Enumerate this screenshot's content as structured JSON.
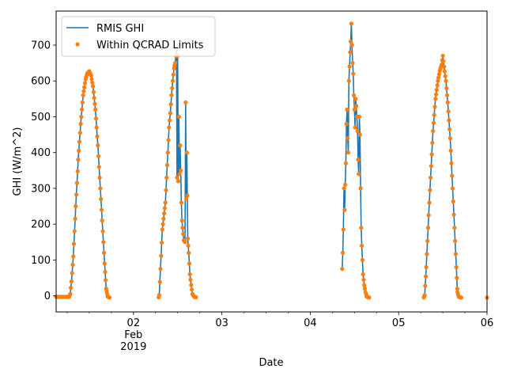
{
  "chart_data": {
    "type": "line",
    "xlabel": "Date",
    "ylabel": "GHI (W/m^2)",
    "xlim": [
      "2019-02-01T03:00",
      "2019-02-06T00:00"
    ],
    "ylim": [
      -45,
      795
    ],
    "grid": false,
    "legend_position": "top-left",
    "x_ticks": [
      {
        "value": "2019-02-02T00:00",
        "label": "02",
        "sub1": "Feb",
        "sub2": "2019"
      },
      {
        "value": "2019-02-03T00:00",
        "label": "03"
      },
      {
        "value": "2019-02-04T00:00",
        "label": "04"
      },
      {
        "value": "2019-02-05T00:00",
        "label": "05"
      },
      {
        "value": "2019-02-06T00:00",
        "label": "06"
      }
    ],
    "y_ticks": [
      0,
      100,
      200,
      300,
      400,
      500,
      600,
      700
    ],
    "series": [
      {
        "name": "RMIS GHI",
        "style": "line",
        "color": "#1f77b4",
        "points": [
          [
            "2019-02-01T03:00",
            -3
          ],
          [
            "2019-02-01T06:30",
            -3
          ],
          [
            "2019-02-01T06:50",
            5
          ],
          [
            "2019-02-01T07:10",
            40
          ],
          [
            "2019-02-01T07:40",
            110
          ],
          [
            "2019-02-01T08:20",
            250
          ],
          [
            "2019-02-01T09:00",
            380
          ],
          [
            "2019-02-01T09:40",
            480
          ],
          [
            "2019-02-01T10:20",
            560
          ],
          [
            "2019-02-01T11:00",
            605
          ],
          [
            "2019-02-01T11:30",
            622
          ],
          [
            "2019-02-01T12:00",
            627
          ],
          [
            "2019-02-01T12:30",
            615
          ],
          [
            "2019-02-01T13:00",
            585
          ],
          [
            "2019-02-01T13:40",
            520
          ],
          [
            "2019-02-01T14:20",
            420
          ],
          [
            "2019-02-01T15:00",
            300
          ],
          [
            "2019-02-01T15:40",
            180
          ],
          [
            "2019-02-01T16:10",
            90
          ],
          [
            "2019-02-01T16:35",
            20
          ],
          [
            "2019-02-01T17:00",
            -2
          ],
          [
            "2019-02-01T17:30",
            -5
          ],
          [
            "2019-02-02T06:50",
            -4
          ],
          [
            "2019-02-02T07:00",
            2
          ],
          [
            "2019-02-02T07:50",
            185
          ],
          [
            "2019-02-02T08:40",
            260
          ],
          [
            "2019-02-02T09:00",
            330
          ],
          [
            "2019-02-02T09:20",
            400
          ],
          [
            "2019-02-02T09:40",
            470
          ],
          [
            "2019-02-02T10:00",
            510
          ],
          [
            "2019-02-02T10:20",
            560
          ],
          [
            "2019-02-02T10:40",
            600
          ],
          [
            "2019-02-02T11:00",
            635
          ],
          [
            "2019-02-02T11:20",
            650
          ],
          [
            "2019-02-02T11:40",
            690
          ],
          [
            "2019-02-02T11:50",
            330
          ],
          [
            "2019-02-02T12:00",
            670
          ],
          [
            "2019-02-02T12:10",
            320
          ],
          [
            "2019-02-02T12:20",
            500
          ],
          [
            "2019-02-02T12:30",
            340
          ],
          [
            "2019-02-02T12:40",
            420
          ],
          [
            "2019-02-02T12:50",
            350
          ],
          [
            "2019-02-02T13:00",
            260
          ],
          [
            "2019-02-02T13:10",
            210
          ],
          [
            "2019-02-02T13:20",
            190
          ],
          [
            "2019-02-02T13:40",
            155
          ],
          [
            "2019-02-02T14:00",
            150
          ],
          [
            "2019-02-02T14:10",
            540
          ],
          [
            "2019-02-02T14:20",
            270
          ],
          [
            "2019-02-02T14:30",
            400
          ],
          [
            "2019-02-02T14:45",
            160
          ],
          [
            "2019-02-02T15:00",
            120
          ],
          [
            "2019-02-02T15:20",
            60
          ],
          [
            "2019-02-02T15:40",
            30
          ],
          [
            "2019-02-02T16:00",
            5
          ],
          [
            "2019-02-02T16:30",
            -3
          ],
          [
            "2019-02-02T17:00",
            -4
          ],
          [
            "2019-02-04T08:40",
            75
          ],
          [
            "2019-02-04T08:50",
            120
          ],
          [
            "2019-02-04T09:00",
            185
          ],
          [
            "2019-02-04T09:10",
            300
          ],
          [
            "2019-02-04T09:20",
            240
          ],
          [
            "2019-02-04T09:30",
            310
          ],
          [
            "2019-02-04T09:40",
            370
          ],
          [
            "2019-02-04T09:50",
            480
          ],
          [
            "2019-02-04T10:00",
            520
          ],
          [
            "2019-02-04T10:10",
            440
          ],
          [
            "2019-02-04T10:20",
            400
          ],
          [
            "2019-02-04T10:30",
            600
          ],
          [
            "2019-02-04T10:40",
            640
          ],
          [
            "2019-02-04T10:50",
            680
          ],
          [
            "2019-02-04T11:00",
            710
          ],
          [
            "2019-02-04T11:10",
            760
          ],
          [
            "2019-02-04T11:20",
            700
          ],
          [
            "2019-02-04T11:30",
            650
          ],
          [
            "2019-02-04T11:40",
            620
          ],
          [
            "2019-02-04T11:50",
            560
          ],
          [
            "2019-02-04T12:00",
            520
          ],
          [
            "2019-02-04T12:10",
            470
          ],
          [
            "2019-02-04T12:20",
            550
          ],
          [
            "2019-02-04T12:30",
            530
          ],
          [
            "2019-02-04T12:40",
            500
          ],
          [
            "2019-02-04T12:50",
            460
          ],
          [
            "2019-02-04T13:00",
            380
          ],
          [
            "2019-02-04T13:10",
            340
          ],
          [
            "2019-02-04T13:20",
            500
          ],
          [
            "2019-02-04T13:30",
            450
          ],
          [
            "2019-02-04T13:40",
            300
          ],
          [
            "2019-02-04T13:50",
            190
          ],
          [
            "2019-02-04T14:00",
            140
          ],
          [
            "2019-02-04T14:20",
            60
          ],
          [
            "2019-02-04T14:40",
            30
          ],
          [
            "2019-02-04T15:00",
            10
          ],
          [
            "2019-02-04T15:20",
            -2
          ],
          [
            "2019-02-04T16:00",
            -5
          ],
          [
            "2019-02-05T06:50",
            -5
          ],
          [
            "2019-02-05T07:05",
            2
          ],
          [
            "2019-02-05T07:30",
            80
          ],
          [
            "2019-02-05T08:00",
            190
          ],
          [
            "2019-02-05T08:40",
            330
          ],
          [
            "2019-02-05T09:20",
            460
          ],
          [
            "2019-02-05T10:00",
            550
          ],
          [
            "2019-02-05T10:40",
            600
          ],
          [
            "2019-02-05T11:10",
            628
          ],
          [
            "2019-02-05T11:40",
            645
          ],
          [
            "2019-02-05T12:00",
            670
          ],
          [
            "2019-02-05T12:20",
            640
          ],
          [
            "2019-02-05T12:50",
            600
          ],
          [
            "2019-02-05T13:20",
            540
          ],
          [
            "2019-02-05T14:00",
            440
          ],
          [
            "2019-02-05T14:40",
            300
          ],
          [
            "2019-02-05T15:10",
            190
          ],
          [
            "2019-02-05T15:40",
            80
          ],
          [
            "2019-02-05T15:55",
            20
          ],
          [
            "2019-02-05T16:00",
            10
          ],
          [
            "2019-02-05T16:20",
            -3
          ],
          [
            "2019-02-05T17:00",
            -5
          ],
          [
            "2019-02-06T00:00",
            -5
          ]
        ]
      },
      {
        "name": "Within QCRAD Limits",
        "style": "markers",
        "color": "#ff7f0e"
      }
    ]
  },
  "legend": {
    "items": [
      {
        "label": "RMIS GHI",
        "color": "#1f77b4",
        "marker": "line"
      },
      {
        "label": "Within QCRAD Limits",
        "color": "#ff7f0e",
        "marker": "dot"
      }
    ]
  }
}
